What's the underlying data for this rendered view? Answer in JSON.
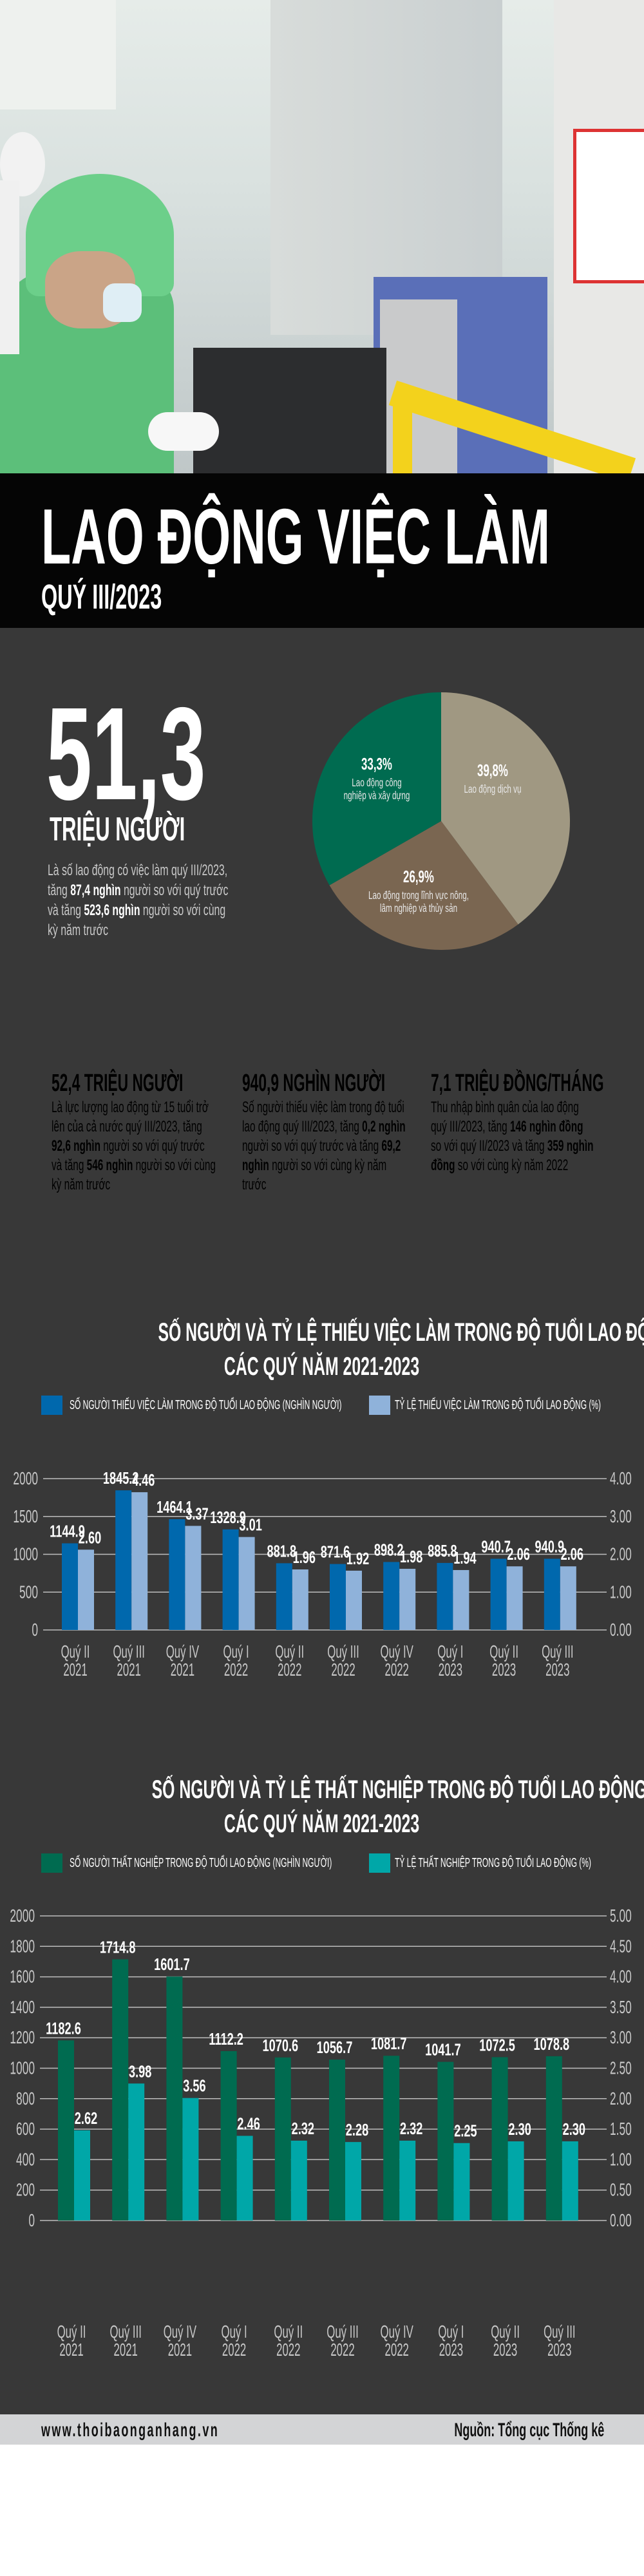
{
  "header": {
    "title": "LAO ĐỘNG VIỆC LÀM",
    "subtitle": "QUÝ III/2023"
  },
  "overview": {
    "big_number": "51,3",
    "unit": "TRIỆU NGƯỜI",
    "desc": [
      "Là số lao động có việc làm quý III/2023, tăng ",
      "87,4 nghìn",
      " người so với quý trước và tăng ",
      "523,6 nghìn",
      " người so với cùng kỳ năm trước"
    ]
  },
  "pie": {
    "type": "pie",
    "slices": [
      {
        "label": "Lao động dịch vụ",
        "value_text": "39,8%",
        "value": 39.8,
        "color": "#a09882"
      },
      {
        "label": "Lao động trong lĩnh vực nông, lâm nghiệp và thủy sản",
        "value_text": "26,9%",
        "value": 26.9,
        "color": "#7a6651"
      },
      {
        "label": "Lao động công nghiệp và xây dựng",
        "value_text": "33,3%",
        "value": 33.3,
        "color": "#006b50"
      }
    ]
  },
  "cards": [
    {
      "headline": "52,4 TRIỆU NGƯỜI",
      "body": [
        "Là lực lượng lao động từ 15 tuổi trở lên của cả nước quý III/2023, tăng ",
        "92,6 nghìn",
        " người so với quý trước và tăng ",
        "546 nghìn",
        " người so với cùng kỳ năm trước"
      ],
      "bg": "#7c7d80",
      "fg": "#ffffff"
    },
    {
      "headline": "940,9 NGHÌN NGƯỜI",
      "body": [
        "Số người thiếu việc làm trong độ tuổi lao động quý III/2023, tăng ",
        "0,2 nghìn",
        " người so với quý trước và tăng ",
        "69,2 nghìn",
        " người so với cùng kỳ năm trước"
      ],
      "bg": "#d4d5d7",
      "fg": "#111111"
    },
    {
      "headline": "7,1 TRIỆU ĐỒNG/THÁNG",
      "body": [
        "Thu nhập bình quân của lao động quý III/2023, tăng ",
        "146 nghìn đồng",
        " so với quý II/2023 và tăng ",
        "359 nghìn đồng",
        " so với cùng kỳ năm 2022"
      ],
      "bg": "#d4d5d7",
      "fg": "#111111"
    }
  ],
  "chart_data": [
    {
      "type": "bar",
      "title": [
        "SỐ NGƯỜI VÀ TỶ LỆ THIẾU VIỆC LÀM TRONG ĐỘ TUỔI LAO ĐỘNG",
        "CÁC QUÝ NĂM 2021-2023"
      ],
      "categories": [
        [
          "Quý II",
          "2021"
        ],
        [
          "Quý III",
          "2021"
        ],
        [
          "Quý IV",
          "2021"
        ],
        [
          "Quý I",
          "2022"
        ],
        [
          "Quý II",
          "2022"
        ],
        [
          "Quý III",
          "2022"
        ],
        [
          "Quý IV",
          "2022"
        ],
        [
          "Quý I",
          "2023"
        ],
        [
          "Quý II",
          "2023"
        ],
        [
          "Quý III",
          "2023"
        ]
      ],
      "series": [
        {
          "name": "SỐ NGƯỜI THIẾU VIỆC LÀM TRONG ĐỘ TUỔI LAO ĐỘNG (NGHÌN NGƯỜI)",
          "axis": "left",
          "color": "#0068ad",
          "values": [
            1144.9,
            1845.2,
            1464.1,
            1328.9,
            881.8,
            871.6,
            898.2,
            885.8,
            940.7,
            940.9
          ],
          "labels": [
            "1144.9",
            "1845.2",
            "1464.1",
            "1328.9",
            "881.8",
            "871.6",
            "898.2",
            "885.8",
            "940.7",
            "940.9"
          ]
        },
        {
          "name": "TỶ LỆ THIẾU VIỆC LÀM TRONG ĐỘ TUỔI LAO ĐỘNG (%)",
          "axis": "right",
          "color": "#8fb2da",
          "values": [
            2.6,
            4.46,
            3.37,
            3.01,
            1.96,
            1.92,
            1.98,
            1.94,
            2.06,
            2.06
          ],
          "labels": [
            "2.60",
            "4.46",
            "3.37",
            "3.01",
            "1.96",
            "1.92",
            "1.98",
            "1.94",
            "2.06",
            "2.06"
          ]
        }
      ],
      "ylim_left": [
        0,
        2000
      ],
      "yticks_left": [
        "0",
        "500",
        "1000",
        "1500",
        "2000"
      ],
      "ylim_right": [
        0,
        4
      ],
      "yticks_right": [
        "0.00",
        "1.00",
        "2.00",
        "3.00",
        "4.00"
      ],
      "grid": true,
      "legend": "top"
    },
    {
      "type": "bar",
      "title": [
        "SỐ NGƯỜI VÀ TỶ LỆ THẤT NGHIỆP TRONG ĐỘ TUỔI LAO ĐỘNG",
        "CÁC QUÝ NĂM 2021-2023"
      ],
      "categories": [
        [
          "Quý II",
          "2021"
        ],
        [
          "Quý III",
          "2021"
        ],
        [
          "Quý IV",
          "2021"
        ],
        [
          "Quý I",
          "2022"
        ],
        [
          "Quý II",
          "2022"
        ],
        [
          "Quý III",
          "2022"
        ],
        [
          "Quý IV",
          "2022"
        ],
        [
          "Quý I",
          "2023"
        ],
        [
          "Quý II",
          "2023"
        ],
        [
          "Quý III",
          "2023"
        ]
      ],
      "series": [
        {
          "name": "SỐ NGƯỜI THẤT NGHIỆP TRONG ĐỘ TUỔI LAO ĐỘNG (NGHÌN NGƯỜI)",
          "axis": "left",
          "color": "#006b50",
          "values": [
            1182.6,
            1714.8,
            1601.7,
            1112.2,
            1070.6,
            1056.7,
            1081.7,
            1041.7,
            1072.5,
            1078.8
          ],
          "labels": [
            "1182.6",
            "1714.8",
            "1601.7",
            "1112.2",
            "1070.6",
            "1056.7",
            "1081.7",
            "1041.7",
            "1072.5",
            "1078.8"
          ]
        },
        {
          "name": "TỶ LỆ THẤT NGHIỆP TRONG ĐỘ TUỔI LAO ĐỘNG (%)",
          "axis": "right",
          "color": "#00a7a8",
          "values": [
            2.62,
            3.98,
            3.56,
            2.46,
            2.32,
            2.28,
            2.32,
            2.25,
            2.3,
            2.3
          ],
          "labels": [
            "2.62",
            "3.98",
            "3.56",
            "2.46",
            "2.32",
            "2.28",
            "2.32",
            "2.25",
            "2.30",
            "2.30"
          ]
        }
      ],
      "ylim_left": [
        0,
        2000
      ],
      "yticks_left": [
        "0",
        "200",
        "400",
        "600",
        "800",
        "1000",
        "1200",
        "1400",
        "1600",
        "1800",
        "2000"
      ],
      "ylim_right": [
        0,
        5
      ],
      "yticks_right": [
        "0.00",
        "0.50",
        "1.00",
        "1.50",
        "2.00",
        "2.50",
        "3.00",
        "3.50",
        "4.00",
        "4.50",
        "5.00"
      ],
      "grid": true,
      "legend": "top"
    }
  ],
  "footer": {
    "website": "www.thoibaonganhang.vn",
    "source": "Nguồn: Tổng cục Thống kê"
  }
}
